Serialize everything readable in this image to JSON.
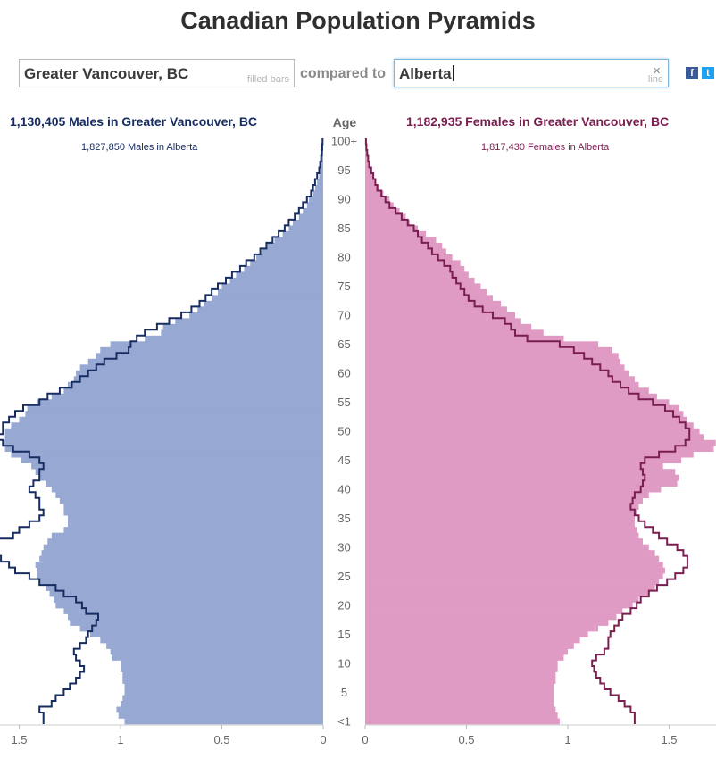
{
  "page": {
    "title": "Canadian Population Pyramids"
  },
  "controls": {
    "primary_location": "Greater Vancouver, BC",
    "primary_hint": "filled bars",
    "compared_label": "compared to",
    "compare_location": "Alberta",
    "compare_hint": "line",
    "clear_symbol": "×",
    "facebook_symbol": "f",
    "twitter_symbol": "t"
  },
  "headers": {
    "male_title": "1,130,405 Males in Greater Vancouver, BC",
    "male_sub": "1,827,850 Males in Alberta",
    "female_title": "1,182,935 Females in Greater Vancouver, BC",
    "female_sub": "1,817,430 Females in Alberta",
    "age_label": "Age"
  },
  "colors": {
    "male_bar": "#97a8d3",
    "female_bar": "#e09bc4",
    "male_line": "#172c61",
    "female_line": "#7a1e50"
  },
  "chart_data": {
    "type": "bar",
    "orientation": "horizontal-pyramid",
    "xlim": [
      0,
      1.75
    ],
    "x_ticks_left": [
      "1.5",
      "1",
      "0.5",
      "0"
    ],
    "x_ticks_right": [
      "0",
      "0.5",
      "1",
      "1.5"
    ],
    "x_tick_values": [
      1.5,
      1,
      0.5,
      0
    ],
    "age_labels": [
      "100+",
      "95",
      "90",
      "85",
      "80",
      "75",
      "70",
      "65",
      "60",
      "55",
      "50",
      "45",
      "40",
      "35",
      "30",
      "25",
      "20",
      "15",
      "10",
      "5",
      "<1"
    ],
    "age_label_values": [
      100,
      95,
      90,
      85,
      80,
      75,
      70,
      65,
      60,
      55,
      50,
      45,
      40,
      35,
      30,
      25,
      20,
      15,
      10,
      5,
      0
    ],
    "ages": [
      0,
      1,
      2,
      3,
      4,
      5,
      6,
      7,
      8,
      9,
      10,
      11,
      12,
      13,
      14,
      15,
      16,
      17,
      18,
      19,
      20,
      21,
      22,
      23,
      24,
      25,
      26,
      27,
      28,
      29,
      30,
      31,
      32,
      33,
      34,
      35,
      36,
      37,
      38,
      39,
      40,
      41,
      42,
      43,
      44,
      45,
      46,
      47,
      48,
      49,
      50,
      51,
      52,
      53,
      54,
      55,
      56,
      57,
      58,
      59,
      60,
      61,
      62,
      63,
      64,
      65,
      66,
      67,
      68,
      69,
      70,
      71,
      72,
      73,
      74,
      75,
      76,
      77,
      78,
      79,
      80,
      81,
      82,
      83,
      84,
      85,
      86,
      87,
      88,
      89,
      90,
      91,
      92,
      93,
      94,
      95,
      96,
      97,
      98,
      99,
      100
    ],
    "series": [
      {
        "name": "Males in Greater Vancouver, BC",
        "style": "filled bars",
        "values": [
          0.98,
          1.01,
          1.02,
          1.0,
          0.99,
          0.98,
          0.98,
          0.99,
          0.99,
          1.0,
          1.0,
          1.04,
          1.05,
          1.07,
          1.1,
          1.15,
          1.2,
          1.25,
          1.26,
          1.28,
          1.32,
          1.33,
          1.35,
          1.37,
          1.4,
          1.41,
          1.41,
          1.42,
          1.4,
          1.39,
          1.38,
          1.36,
          1.34,
          1.28,
          1.26,
          1.26,
          1.28,
          1.28,
          1.3,
          1.32,
          1.34,
          1.37,
          1.4,
          1.42,
          1.44,
          1.49,
          1.54,
          1.57,
          1.58,
          1.57,
          1.57,
          1.54,
          1.5,
          1.47,
          1.46,
          1.41,
          1.34,
          1.28,
          1.26,
          1.23,
          1.22,
          1.2,
          1.16,
          1.12,
          1.1,
          1.05,
          0.88,
          0.8,
          0.79,
          0.73,
          0.66,
          0.62,
          0.59,
          0.55,
          0.52,
          0.5,
          0.46,
          0.43,
          0.39,
          0.36,
          0.33,
          0.3,
          0.28,
          0.24,
          0.2,
          0.17,
          0.15,
          0.12,
          0.1,
          0.08,
          0.07,
          0.05,
          0.04,
          0.03,
          0.02,
          0.015,
          0.01,
          0.008,
          0.005,
          0.003,
          0.002
        ]
      },
      {
        "name": "Males in Alberta",
        "style": "line",
        "values": [
          1.38,
          1.38,
          1.4,
          1.34,
          1.32,
          1.28,
          1.25,
          1.22,
          1.2,
          1.18,
          1.2,
          1.22,
          1.23,
          1.2,
          1.17,
          1.16,
          1.14,
          1.12,
          1.11,
          1.17,
          1.19,
          1.22,
          1.28,
          1.32,
          1.4,
          1.45,
          1.52,
          1.55,
          1.59,
          1.6,
          1.63,
          1.6,
          1.53,
          1.5,
          1.45,
          1.4,
          1.38,
          1.4,
          1.4,
          1.42,
          1.45,
          1.43,
          1.4,
          1.4,
          1.38,
          1.4,
          1.45,
          1.53,
          1.58,
          1.6,
          1.58,
          1.58,
          1.55,
          1.52,
          1.48,
          1.4,
          1.36,
          1.3,
          1.24,
          1.2,
          1.16,
          1.12,
          1.08,
          1.02,
          0.96,
          0.95,
          0.92,
          0.88,
          0.82,
          0.76,
          0.7,
          0.65,
          0.61,
          0.58,
          0.55,
          0.52,
          0.48,
          0.45,
          0.41,
          0.38,
          0.34,
          0.31,
          0.28,
          0.25,
          0.22,
          0.19,
          0.17,
          0.14,
          0.12,
          0.1,
          0.08,
          0.06,
          0.05,
          0.04,
          0.03,
          0.02,
          0.015,
          0.01,
          0.007,
          0.005,
          0.003
        ]
      },
      {
        "name": "Females in Greater Vancouver, BC",
        "style": "filled bars",
        "values": [
          0.96,
          0.95,
          0.94,
          0.93,
          0.93,
          0.93,
          0.93,
          0.94,
          0.94,
          0.95,
          0.95,
          0.98,
          1.0,
          1.03,
          1.06,
          1.1,
          1.15,
          1.2,
          1.24,
          1.27,
          1.32,
          1.35,
          1.4,
          1.43,
          1.45,
          1.47,
          1.48,
          1.47,
          1.45,
          1.43,
          1.4,
          1.37,
          1.35,
          1.34,
          1.33,
          1.33,
          1.34,
          1.35,
          1.37,
          1.4,
          1.46,
          1.54,
          1.55,
          1.53,
          1.47,
          1.56,
          1.62,
          1.72,
          1.73,
          1.67,
          1.65,
          1.62,
          1.59,
          1.57,
          1.55,
          1.5,
          1.44,
          1.4,
          1.35,
          1.33,
          1.3,
          1.28,
          1.26,
          1.25,
          1.22,
          1.15,
          0.98,
          0.88,
          0.82,
          0.77,
          0.74,
          0.7,
          0.67,
          0.63,
          0.6,
          0.57,
          0.54,
          0.51,
          0.49,
          0.47,
          0.43,
          0.4,
          0.38,
          0.35,
          0.3,
          0.26,
          0.22,
          0.2,
          0.17,
          0.14,
          0.12,
          0.09,
          0.07,
          0.05,
          0.04,
          0.03,
          0.02,
          0.015,
          0.01,
          0.006,
          0.004
        ]
      },
      {
        "name": "Females in Alberta",
        "style": "line",
        "values": [
          1.33,
          1.33,
          1.31,
          1.28,
          1.25,
          1.21,
          1.18,
          1.16,
          1.14,
          1.13,
          1.12,
          1.14,
          1.18,
          1.2,
          1.2,
          1.21,
          1.23,
          1.25,
          1.27,
          1.31,
          1.34,
          1.36,
          1.4,
          1.44,
          1.49,
          1.53,
          1.57,
          1.59,
          1.59,
          1.57,
          1.54,
          1.49,
          1.45,
          1.42,
          1.38,
          1.35,
          1.33,
          1.31,
          1.32,
          1.33,
          1.36,
          1.37,
          1.38,
          1.37,
          1.36,
          1.38,
          1.45,
          1.53,
          1.58,
          1.6,
          1.6,
          1.58,
          1.55,
          1.52,
          1.48,
          1.42,
          1.35,
          1.3,
          1.26,
          1.22,
          1.2,
          1.16,
          1.12,
          1.08,
          1.03,
          0.96,
          0.8,
          0.74,
          0.72,
          0.69,
          0.63,
          0.58,
          0.54,
          0.51,
          0.49,
          0.47,
          0.45,
          0.43,
          0.42,
          0.39,
          0.36,
          0.33,
          0.31,
          0.28,
          0.26,
          0.24,
          0.21,
          0.18,
          0.15,
          0.12,
          0.1,
          0.08,
          0.06,
          0.05,
          0.04,
          0.03,
          0.02,
          0.015,
          0.01,
          0.006,
          0.004
        ]
      }
    ]
  }
}
